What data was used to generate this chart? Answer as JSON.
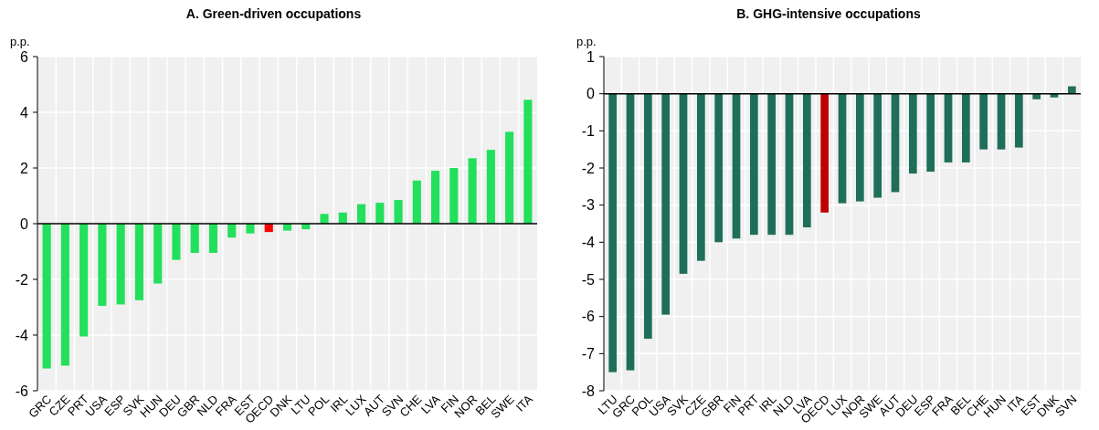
{
  "chart_data": [
    {
      "type": "bar",
      "title": "A. Green-driven occupations",
      "ylabel": "p.p.",
      "categories": [
        "GRC",
        "CZE",
        "PRT",
        "USA",
        "ESP",
        "SVK",
        "HUN",
        "DEU",
        "GBR",
        "NLD",
        "FRA",
        "EST",
        "OECD",
        "DNK",
        "LTU",
        "POL",
        "IRL",
        "LUX",
        "AUT",
        "SVN",
        "CHE",
        "LVA",
        "FIN",
        "NOR",
        "BEL",
        "SWE",
        "ITA"
      ],
      "values": [
        -5.2,
        -5.1,
        -4.05,
        -2.95,
        -2.9,
        -2.75,
        -2.15,
        -1.3,
        -1.05,
        -1.05,
        -0.5,
        -0.35,
        -0.3,
        -0.25,
        -0.2,
        0.35,
        0.4,
        0.7,
        0.75,
        0.85,
        1.55,
        1.9,
        2.0,
        2.35,
        2.65,
        3.3,
        4.45
      ],
      "colors": [
        "#22e05c",
        "#22e05c",
        "#22e05c",
        "#22e05c",
        "#22e05c",
        "#22e05c",
        "#22e05c",
        "#22e05c",
        "#22e05c",
        "#22e05c",
        "#22e05c",
        "#22e05c",
        "#ff0000",
        "#22e05c",
        "#22e05c",
        "#22e05c",
        "#22e05c",
        "#22e05c",
        "#22e05c",
        "#22e05c",
        "#22e05c",
        "#22e05c",
        "#22e05c",
        "#22e05c",
        "#22e05c",
        "#22e05c",
        "#22e05c"
      ],
      "ylim": [
        -6,
        6
      ],
      "yticks": [
        -6,
        -4,
        -2,
        0,
        2,
        4,
        6
      ],
      "grid": true
    },
    {
      "type": "bar",
      "title": "B. GHG-intensive occupations",
      "ylabel": "p.p.",
      "categories": [
        "LTU",
        "GRC",
        "POL",
        "USA",
        "SVK",
        "CZE",
        "GBR",
        "FIN",
        "PRT",
        "IRL",
        "NLD",
        "LVA",
        "OECD",
        "LUX",
        "NOR",
        "SWE",
        "AUT",
        "DEU",
        "ESP",
        "FRA",
        "BEL",
        "CHE",
        "HUN",
        "ITA",
        "EST",
        "DNK",
        "SVN"
      ],
      "values": [
        -7.5,
        -7.45,
        -6.6,
        -5.95,
        -4.85,
        -4.5,
        -4.0,
        -3.9,
        -3.8,
        -3.8,
        -3.8,
        -3.6,
        -3.2,
        -2.95,
        -2.9,
        -2.8,
        -2.65,
        -2.15,
        -2.1,
        -1.85,
        -1.85,
        -1.5,
        -1.5,
        -1.45,
        -0.15,
        -0.1,
        0.2
      ],
      "colors": [
        "#1f6e5a",
        "#1f6e5a",
        "#1f6e5a",
        "#1f6e5a",
        "#1f6e5a",
        "#1f6e5a",
        "#1f6e5a",
        "#1f6e5a",
        "#1f6e5a",
        "#1f6e5a",
        "#1f6e5a",
        "#1f6e5a",
        "#c00000",
        "#1f6e5a",
        "#1f6e5a",
        "#1f6e5a",
        "#1f6e5a",
        "#1f6e5a",
        "#1f6e5a",
        "#1f6e5a",
        "#1f6e5a",
        "#1f6e5a",
        "#1f6e5a",
        "#1f6e5a",
        "#1f6e5a",
        "#1f6e5a",
        "#1f6e5a"
      ],
      "ylim": [
        -8,
        1
      ],
      "yticks": [
        -8,
        -7,
        -6,
        -5,
        -4,
        -3,
        -2,
        -1,
        0,
        1
      ],
      "grid": true
    }
  ]
}
